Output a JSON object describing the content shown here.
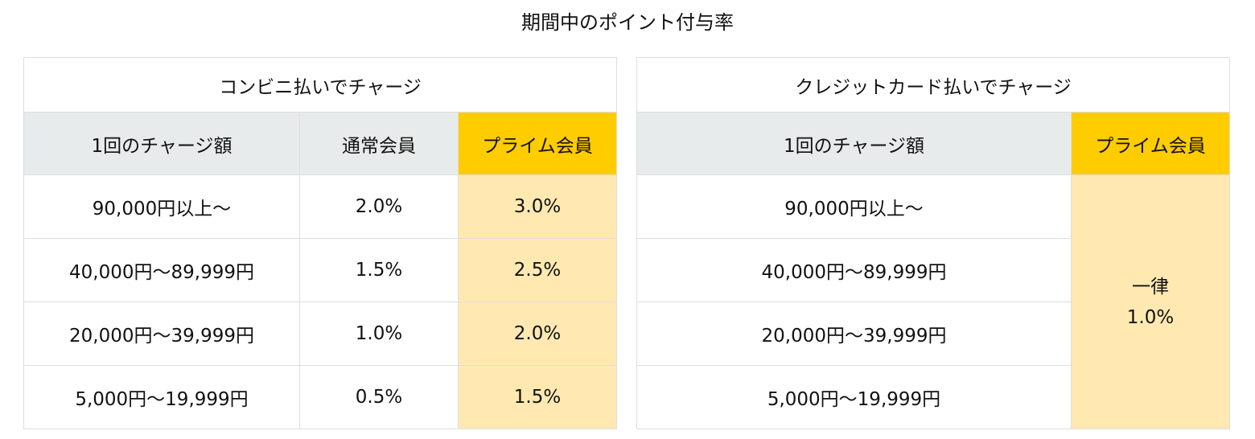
{
  "title": "期間中のポイント付与率",
  "colors": {
    "header_bg": "#e8ebeb",
    "prime_header_bg": "#ffcc00",
    "prime_cell_bg": "#ffe9b1",
    "border": "#dedede"
  },
  "convenience": {
    "title": "コンビニ払いでチャージ",
    "headers": [
      "1回のチャージ額",
      "通常会員",
      "プライム会員"
    ],
    "rows": [
      {
        "amount": "90,000円以上～",
        "regular": "2.0%",
        "prime": "3.0%"
      },
      {
        "amount": "40,000円～89,999円",
        "regular": "1.5%",
        "prime": "2.5%"
      },
      {
        "amount": "20,000円～39,999円",
        "regular": "1.0%",
        "prime": "2.0%"
      },
      {
        "amount": "5,000円～19,999円",
        "regular": "0.5%",
        "prime": "1.5%"
      }
    ]
  },
  "credit": {
    "title": "クレジットカード払いでチャージ",
    "headers": [
      "1回のチャージ額",
      "プライム会員"
    ],
    "amounts": [
      "90,000円以上～",
      "40,000円～89,999円",
      "20,000円～39,999円",
      "5,000円～19,999円"
    ],
    "flat_label": "一律",
    "flat_rate": "1.0%"
  }
}
